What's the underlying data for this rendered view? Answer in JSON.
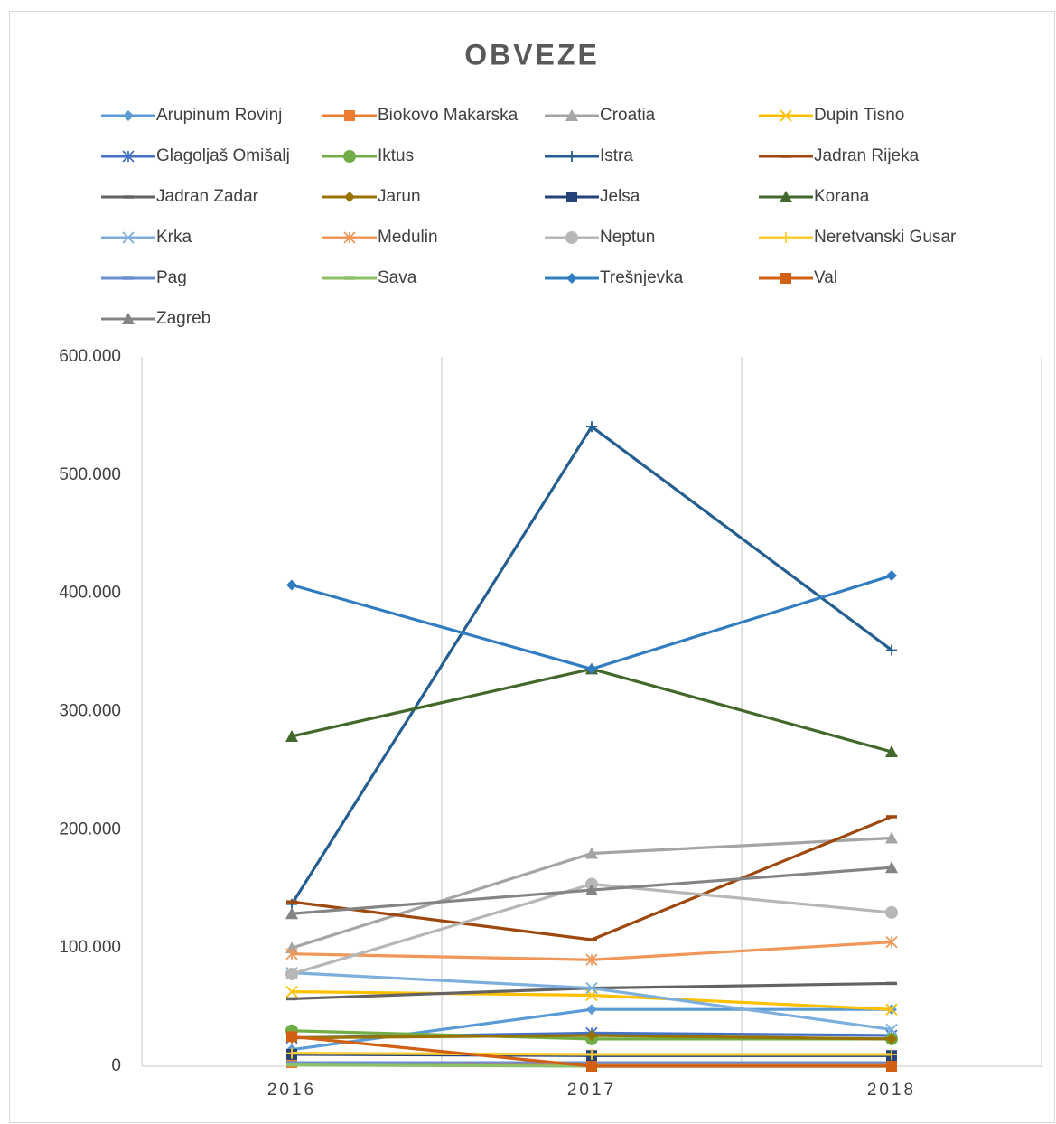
{
  "chart_data": {
    "type": "line",
    "title": "OBVEZE",
    "categories": [
      "2016",
      "2017",
      "2018"
    ],
    "ylim": [
      0,
      600000
    ],
    "yticks": [
      {
        "value": 0,
        "label": "0"
      },
      {
        "value": 100000,
        "label": "100.000"
      },
      {
        "value": 200000,
        "label": "200.000"
      },
      {
        "value": 300000,
        "label": "300.000"
      },
      {
        "value": 400000,
        "label": "400.000"
      },
      {
        "value": 500000,
        "label": "500.000"
      },
      {
        "value": 600000,
        "label": "600.000"
      }
    ],
    "grid": "x",
    "legend": "top",
    "series": [
      {
        "name": "Arupinum Rovinj",
        "color": "#5b9bd5",
        "marker": "diamond",
        "values": [
          14000,
          48000,
          48000
        ]
      },
      {
        "name": "Biokovo Makarska",
        "color": "#ed7d31",
        "marker": "square",
        "values": [
          3000,
          1000,
          1000
        ]
      },
      {
        "name": "Croatia",
        "color": "#a5a5a5",
        "marker": "triangle",
        "values": [
          100000,
          180000,
          193000
        ]
      },
      {
        "name": "Dupin Tisno",
        "color": "#ffc000",
        "marker": "x",
        "values": [
          63000,
          60000,
          48000
        ]
      },
      {
        "name": "Glagoljaš Omišalj",
        "color": "#4472c4",
        "marker": "star",
        "values": [
          24000,
          28000,
          26000
        ]
      },
      {
        "name": "Iktus",
        "color": "#70ad47",
        "marker": "circle",
        "values": [
          30000,
          23000,
          23000
        ]
      },
      {
        "name": "Istra",
        "color": "#255e91",
        "marker": "plus",
        "values": [
          137000,
          541000,
          352000
        ]
      },
      {
        "name": "Jadran Rijeka",
        "color": "#9e480e",
        "marker": "dash",
        "values": [
          139000,
          107000,
          211000
        ]
      },
      {
        "name": "Jadran Zadar",
        "color": "#636363",
        "marker": "dash",
        "values": [
          57000,
          66000,
          70000
        ]
      },
      {
        "name": "Jarun",
        "color": "#997300",
        "marker": "diamond",
        "values": [
          24000,
          26000,
          23000
        ]
      },
      {
        "name": "Jelsa",
        "color": "#264478",
        "marker": "square",
        "values": [
          10000,
          9000,
          9000
        ]
      },
      {
        "name": "Korana",
        "color": "#43682b",
        "marker": "triangle",
        "values": [
          279000,
          336000,
          266000
        ]
      },
      {
        "name": "Krka",
        "color": "#7cafdd",
        "marker": "x",
        "values": [
          79000,
          66000,
          31000
        ]
      },
      {
        "name": "Medulin",
        "color": "#f1975a",
        "marker": "star",
        "values": [
          95000,
          90000,
          105000
        ]
      },
      {
        "name": "Neptun",
        "color": "#b7b7b7",
        "marker": "circle",
        "values": [
          78000,
          154000,
          130000
        ]
      },
      {
        "name": "Neretvanski Gusar",
        "color": "#ffcd33",
        "marker": "plus",
        "values": [
          11000,
          10000,
          10000
        ]
      },
      {
        "name": "Pag",
        "color": "#698ed0",
        "marker": "dash",
        "values": [
          3000,
          3000,
          3000
        ]
      },
      {
        "name": "Sava",
        "color": "#8cc168",
        "marker": "dash",
        "values": [
          1000,
          0,
          0
        ]
      },
      {
        "name": "Trešnjevka",
        "color": "#327dc2",
        "marker": "diamond",
        "values": [
          407000,
          336000,
          415000
        ]
      },
      {
        "name": "Val",
        "color": "#d26012",
        "marker": "square",
        "values": [
          25000,
          0,
          0
        ]
      },
      {
        "name": "Zagreb",
        "color": "#848484",
        "marker": "triangle",
        "values": [
          129000,
          149000,
          168000
        ]
      }
    ]
  }
}
